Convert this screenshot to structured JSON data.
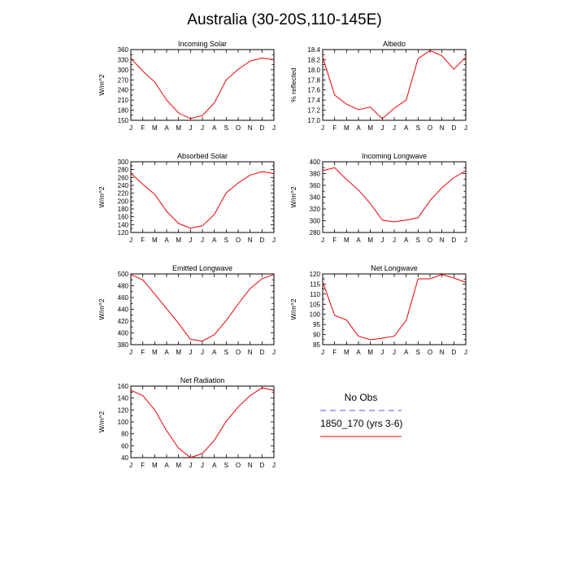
{
  "title": "Australia (30-20S,110-145E)",
  "line_color": "#ee0000",
  "obs_color": "#5555ee",
  "legend": {
    "obs_label": "No Obs",
    "model_label": "1850_170 (yrs 3-6)"
  },
  "chart_data": [
    {
      "type": "line",
      "title": "Incoming Solar",
      "ylabel": "W/m^2",
      "categories": [
        "J",
        "F",
        "M",
        "A",
        "M",
        "J",
        "J",
        "A",
        "S",
        "O",
        "N",
        "D",
        "J"
      ],
      "ylim": [
        150,
        360
      ],
      "yticks": [
        150,
        165,
        180,
        195,
        210,
        225,
        240,
        255,
        270,
        285,
        300,
        315,
        330,
        345,
        360
      ],
      "yticklabels": [
        "150",
        "",
        "180",
        "",
        "210",
        "",
        "240",
        "",
        "270",
        "",
        "300",
        "",
        "330",
        "",
        "360"
      ],
      "series": [
        {
          "values": [
            334,
            296,
            264,
            210,
            172,
            155,
            164,
            202,
            270,
            301,
            326,
            335,
            330
          ]
        }
      ]
    },
    {
      "type": "line",
      "title": "Albedo",
      "ylabel": "% reflected",
      "categories": [
        "J",
        "F",
        "M",
        "A",
        "M",
        "J",
        "J",
        "A",
        "S",
        "O",
        "N",
        "D",
        "J"
      ],
      "ylim": [
        17.0,
        18.4
      ],
      "yticks": [
        17.0,
        17.1,
        17.2,
        17.3,
        17.4,
        17.5,
        17.6,
        17.7,
        17.8,
        17.9,
        18.0,
        18.1,
        18.2,
        18.3,
        18.4
      ],
      "yticklabels": [
        "17.0",
        "",
        "17.2",
        "",
        "17.4",
        "",
        "17.6",
        "",
        "17.8",
        "",
        "18.0",
        "",
        "18.2",
        "",
        "18.4"
      ],
      "series": [
        {
          "values": [
            18.25,
            17.5,
            17.32,
            17.21,
            17.26,
            17.03,
            17.24,
            17.4,
            18.22,
            18.38,
            18.28,
            18.01,
            18.25
          ]
        }
      ]
    },
    {
      "type": "line",
      "title": "Absorbed Solar",
      "ylabel": "W/m^2",
      "categories": [
        "J",
        "F",
        "M",
        "A",
        "M",
        "J",
        "J",
        "A",
        "S",
        "O",
        "N",
        "D",
        "J"
      ],
      "ylim": [
        120,
        300
      ],
      "yticks": [
        120,
        130,
        140,
        150,
        160,
        170,
        180,
        190,
        200,
        210,
        220,
        230,
        240,
        250,
        260,
        270,
        280,
        290,
        300
      ],
      "yticklabels": [
        "120",
        "",
        "140",
        "",
        "160",
        "",
        "180",
        "",
        "200",
        "",
        "220",
        "",
        "240",
        "",
        "260",
        "",
        "280",
        "",
        "300"
      ],
      "series": [
        {
          "values": [
            271,
            243,
            217,
            174,
            143,
            131,
            137,
            166,
            221,
            246,
            266,
            275,
            270
          ]
        }
      ]
    },
    {
      "type": "line",
      "title": "Incoming Longwave",
      "ylabel": "W/m^2",
      "categories": [
        "J",
        "F",
        "M",
        "A",
        "M",
        "J",
        "J",
        "A",
        "S",
        "O",
        "N",
        "D",
        "J"
      ],
      "ylim": [
        280,
        400
      ],
      "yticks": [
        280,
        290,
        300,
        310,
        320,
        330,
        340,
        350,
        360,
        370,
        380,
        390,
        400
      ],
      "yticklabels": [
        "280",
        "",
        "300",
        "",
        "320",
        "",
        "340",
        "",
        "360",
        "",
        "380",
        "",
        "400"
      ],
      "series": [
        {
          "values": [
            385,
            390,
            370,
            352,
            329,
            301,
            298,
            301,
            305,
            334,
            356,
            373,
            385
          ]
        }
      ]
    },
    {
      "type": "line",
      "title": "Emitted Longwave",
      "ylabel": "W/m^2",
      "categories": [
        "J",
        "F",
        "M",
        "A",
        "M",
        "J",
        "J",
        "A",
        "S",
        "O",
        "N",
        "D",
        "J"
      ],
      "ylim": [
        380,
        500
      ],
      "yticks": [
        380,
        390,
        400,
        410,
        420,
        430,
        440,
        450,
        460,
        470,
        480,
        490,
        500
      ],
      "yticklabels": [
        "380",
        "",
        "400",
        "",
        "420",
        "",
        "440",
        "",
        "460",
        "",
        "480",
        "",
        "500"
      ],
      "series": [
        {
          "values": [
            499,
            490,
            466,
            441,
            416,
            389,
            386,
            397,
            421,
            449,
            475,
            492,
            499
          ]
        }
      ]
    },
    {
      "type": "line",
      "title": "Net Longwave",
      "ylabel": "W/m^2",
      "categories": [
        "J",
        "F",
        "M",
        "A",
        "M",
        "J",
        "J",
        "A",
        "S",
        "O",
        "N",
        "D",
        "J"
      ],
      "ylim": [
        85,
        120
      ],
      "yticks": [
        85,
        87.5,
        90,
        92.5,
        95,
        97.5,
        100,
        102.5,
        105,
        107.5,
        110,
        112.5,
        115,
        117.5,
        120
      ],
      "yticklabels": [
        "85",
        "",
        "90",
        "",
        "95",
        "",
        "100",
        "",
        "105",
        "",
        "110",
        "",
        "115",
        "",
        "120"
      ],
      "series": [
        {
          "values": [
            116,
            99.5,
            97.2,
            89.2,
            87.4,
            88.2,
            89.2,
            97,
            117.6,
            117.6,
            119.7,
            118,
            115.8
          ]
        }
      ]
    },
    {
      "type": "line",
      "title": "Net Radiation",
      "ylabel": "W/m^2",
      "categories": [
        "J",
        "F",
        "M",
        "A",
        "M",
        "J",
        "J",
        "A",
        "S",
        "O",
        "N",
        "D",
        "J"
      ],
      "ylim": [
        40,
        160
      ],
      "yticks": [
        40,
        50,
        60,
        70,
        80,
        90,
        100,
        110,
        120,
        130,
        140,
        150,
        160
      ],
      "yticklabels": [
        "40",
        "",
        "60",
        "",
        "80",
        "",
        "100",
        "",
        "120",
        "",
        "140",
        "",
        "160"
      ],
      "series": [
        {
          "values": [
            153,
            144,
            120,
            85,
            56,
            40,
            47,
            69,
            101,
            125,
            144,
            157,
            153
          ]
        }
      ]
    }
  ]
}
